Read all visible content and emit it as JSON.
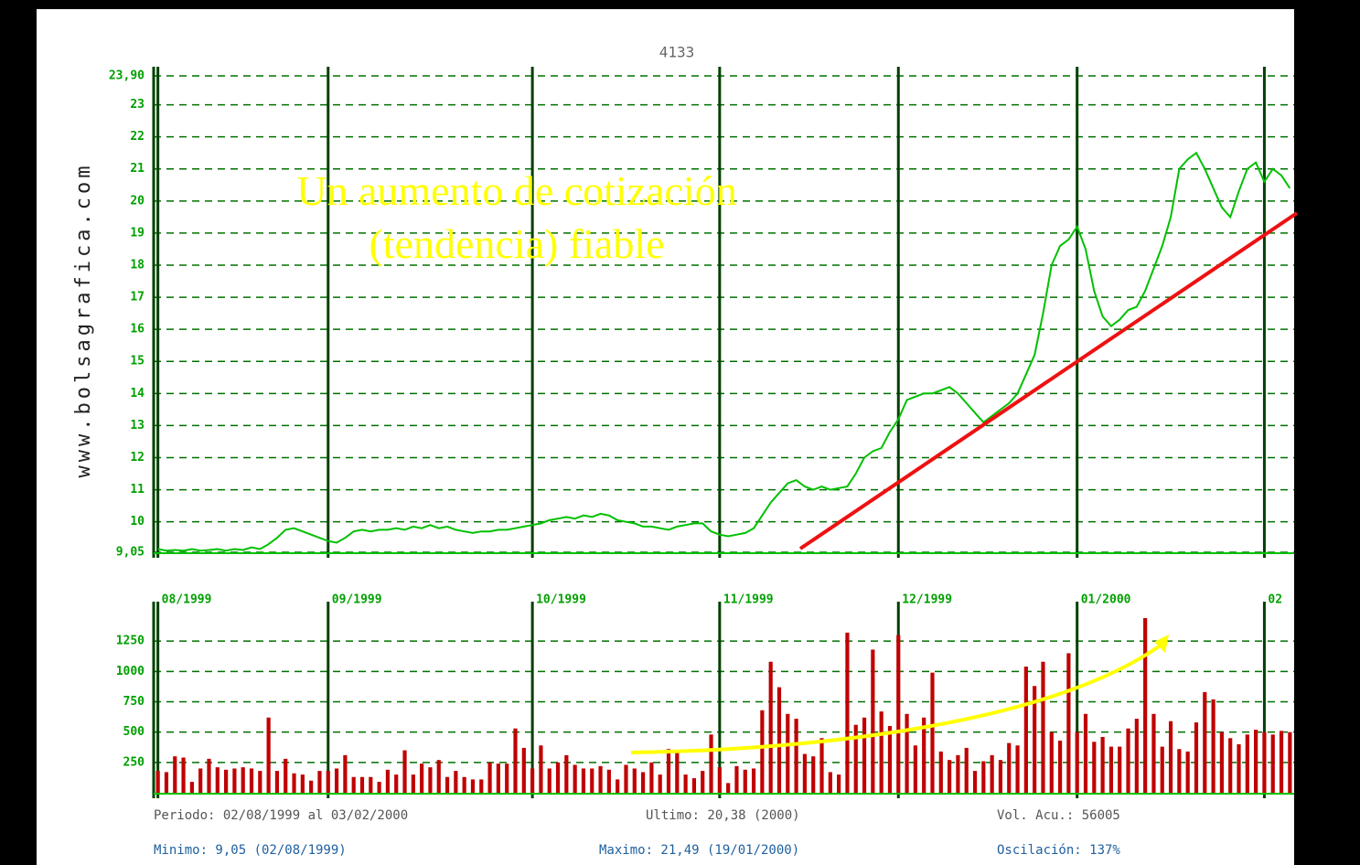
{
  "chart_data": [
    {
      "type": "line",
      "title": "4133",
      "watermark": "www.bolsagrafica.com",
      "annotation": "Un aumento de cotización (tendencia) fiable",
      "color": "#00c000",
      "grid": true,
      "xlim": [
        -0.5,
        133.5
      ],
      "xticks": [
        {
          "value": 0,
          "label": "08/1999"
        },
        {
          "value": 20,
          "label": "09/1999"
        },
        {
          "value": 44,
          "label": "10/1999"
        },
        {
          "value": 66,
          "label": "11/1999"
        },
        {
          "value": 87,
          "label": "12/1999"
        },
        {
          "value": 108,
          "label": "01/2000"
        },
        {
          "value": 130,
          "label": "02"
        }
      ],
      "ylim": [
        9.05,
        23.9
      ],
      "yticks": [
        {
          "value": 9.05,
          "label": "9,05"
        },
        10,
        11,
        12,
        13,
        14,
        15,
        16,
        17,
        18,
        19,
        20,
        21,
        22,
        23,
        {
          "value": 23.9,
          "label": "23,90"
        }
      ],
      "values": [
        9.15,
        9.1,
        9.12,
        9.1,
        9.15,
        9.1,
        9.12,
        9.15,
        9.1,
        9.15,
        9.12,
        9.2,
        9.15,
        9.3,
        9.5,
        9.75,
        9.8,
        9.7,
        9.6,
        9.5,
        9.4,
        9.35,
        9.5,
        9.7,
        9.75,
        9.7,
        9.75,
        9.75,
        9.8,
        9.75,
        9.85,
        9.8,
        9.9,
        9.8,
        9.85,
        9.75,
        9.7,
        9.65,
        9.7,
        9.7,
        9.75,
        9.75,
        9.8,
        9.85,
        9.9,
        9.95,
        10.05,
        10.1,
        10.15,
        10.1,
        10.2,
        10.15,
        10.25,
        10.2,
        10.05,
        10.0,
        9.95,
        9.85,
        9.85,
        9.8,
        9.75,
        9.85,
        9.9,
        9.95,
        9.95,
        9.7,
        9.6,
        9.55,
        9.6,
        9.65,
        9.8,
        10.2,
        10.6,
        10.9,
        11.2,
        11.3,
        11.1,
        11.0,
        11.1,
        11.0,
        11.05,
        11.1,
        11.5,
        12.0,
        12.2,
        12.3,
        12.8,
        13.2,
        13.8,
        13.9,
        14.0,
        14.0,
        14.1,
        14.2,
        14.0,
        13.7,
        13.4,
        13.1,
        13.3,
        13.5,
        13.7,
        14.0,
        14.6,
        15.2,
        16.5,
        18.0,
        18.6,
        18.8,
        19.2,
        18.5,
        17.2,
        16.4,
        16.1,
        16.3,
        16.6,
        16.7,
        17.2,
        17.9,
        18.6,
        19.5,
        21.0,
        21.3,
        21.5,
        21.0,
        20.4,
        19.8,
        19.5,
        20.3,
        21.0,
        21.2,
        20.6,
        21.0,
        20.8,
        20.4
      ]
    },
    {
      "type": "bar",
      "color": "#c00000",
      "grid": true,
      "xlim": [
        -0.5,
        133.5
      ],
      "ylim": [
        0,
        1500
      ],
      "yticks": [
        250,
        500,
        750,
        1000,
        1250
      ],
      "values": [
        180,
        170,
        300,
        290,
        90,
        200,
        280,
        210,
        190,
        200,
        210,
        200,
        180,
        620,
        180,
        280,
        160,
        150,
        100,
        180,
        180,
        200,
        310,
        130,
        130,
        130,
        90,
        190,
        150,
        350,
        150,
        240,
        210,
        270,
        130,
        180,
        130,
        110,
        110,
        250,
        240,
        240,
        530,
        370,
        200,
        390,
        200,
        250,
        310,
        230,
        200,
        200,
        220,
        190,
        110,
        230,
        200,
        170,
        250,
        150,
        360,
        330,
        150,
        120,
        180,
        480,
        210,
        80,
        220,
        190,
        200,
        680,
        1080,
        870,
        650,
        610,
        320,
        300,
        450,
        170,
        150,
        1320,
        560,
        620,
        1180,
        670,
        550,
        1300,
        650,
        390,
        620,
        990,
        340,
        270,
        310,
        370,
        180,
        260,
        310,
        270,
        410,
        390,
        1040,
        880,
        1080,
        500,
        430,
        1150,
        500,
        650,
        420,
        460,
        380,
        380,
        530,
        610,
        1440,
        650,
        380,
        590,
        360,
        340,
        580,
        830,
        770,
        500,
        450,
        400,
        480,
        520,
        500,
        480,
        510,
        500
      ]
    }
  ],
  "footer": [
    "Periodo: 02/08/1999 al 03/02/2000",
    "Ultimo: 20,38 (2000)",
    "Vol. Acu.: 56005",
    "Minimo: 9,05 (02/08/1999)",
    "Maximo: 21,49 (19/01/2000)",
    "Oscilación: 137%"
  ]
}
